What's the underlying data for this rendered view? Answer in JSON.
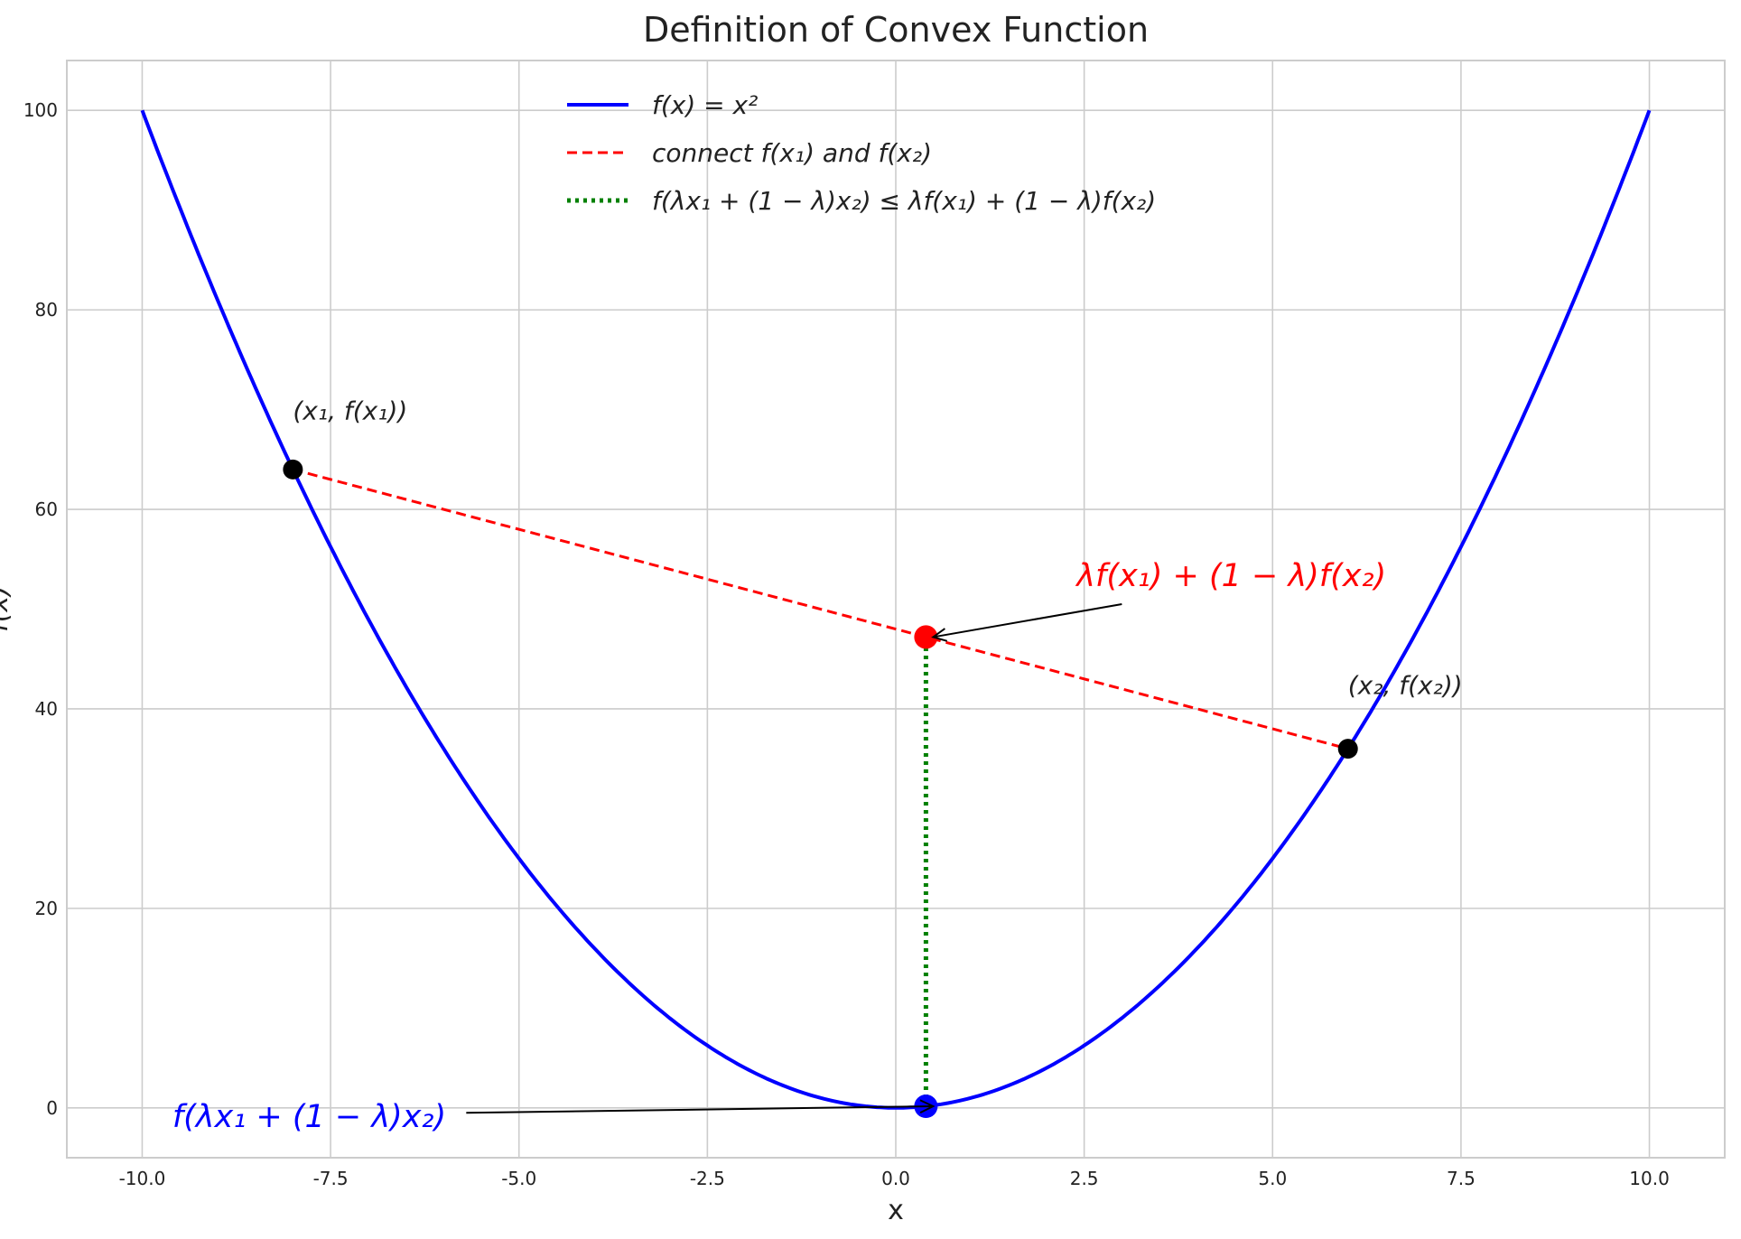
{
  "chart_data": {
    "type": "line",
    "title": "Definition of Convex Function",
    "xlabel": "x",
    "ylabel": "f(x)",
    "xlim": [
      -11,
      11
    ],
    "ylim": [
      -5,
      105
    ],
    "xticks": [
      "-10.0",
      "-7.5",
      "-5.0",
      "-2.5",
      "0.0",
      "2.5",
      "5.0",
      "7.5",
      "10.0"
    ],
    "xtick_values": [
      -10,
      -7.5,
      -5,
      -2.5,
      0,
      2.5,
      5,
      7.5,
      10
    ],
    "yticks": [
      "0",
      "20",
      "40",
      "60",
      "80",
      "100"
    ],
    "ytick_values": [
      0,
      20,
      40,
      60,
      80,
      100
    ],
    "grid": true,
    "legend_placement": "upper-center",
    "series": [
      {
        "name": "f(x) = x²",
        "kind": "curve",
        "function": "x^2",
        "x_range": [
          -10,
          10
        ],
        "color": "#0000ff",
        "style": "solid"
      },
      {
        "name": "connect f(x₁) and f(x₂)",
        "kind": "segment",
        "x": [
          -8,
          6
        ],
        "y": [
          64,
          36
        ],
        "color": "#ff0000",
        "style": "dashed"
      },
      {
        "name": "f(λx₁ + (1 − λ)x₂) ≤ λf(x₁) + (1 − λ)f(x₂)",
        "kind": "segment",
        "x": [
          0.4,
          0.4
        ],
        "y": [
          0.16,
          47.2
        ],
        "color": "#008000",
        "style": "dotted"
      }
    ],
    "points": [
      {
        "x": -8,
        "y": 64,
        "color": "#000000"
      },
      {
        "x": 6,
        "y": 36,
        "color": "#000000"
      },
      {
        "x": 0.4,
        "y": 47.2,
        "color": "#ff0000"
      },
      {
        "x": 0.4,
        "y": 0.16,
        "color": "#0000ff"
      }
    ],
    "annotations": [
      {
        "text": "(x₁, f(x₁))",
        "x": -8,
        "y": 69,
        "color": "#222222"
      },
      {
        "text": "(x₂, f(x₂))",
        "x": 6,
        "y": 41.5,
        "color": "#222222"
      },
      {
        "text": "λf(x₁) + (1 − λ)f(x₂)",
        "x": 2.4,
        "y": 52.3,
        "color": "#ff0000",
        "arrow_to": [
          0.4,
          47.2
        ],
        "arrow_from": [
          3,
          50.5
        ]
      },
      {
        "text": "f(λx₁ + (1 − λ)x₂)",
        "x": -9.6,
        "y": -1.9,
        "color": "#0000ff",
        "arrow_to": [
          0.4,
          0.16
        ],
        "arrow_from": [
          -5.7,
          -0.5
        ]
      }
    ]
  }
}
